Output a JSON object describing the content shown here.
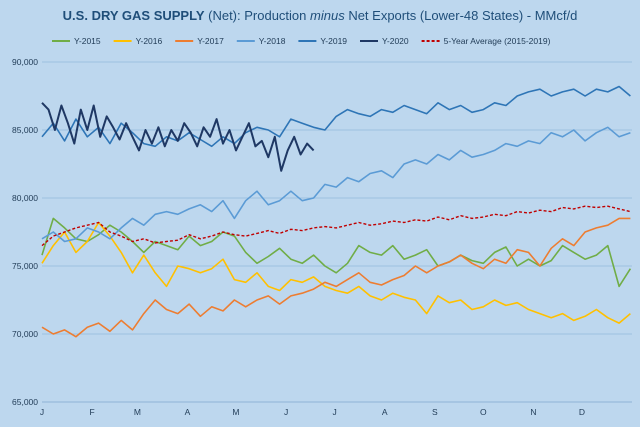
{
  "chart_data": {
    "type": "line",
    "title_bold": "U.S. DRY GAS SUPPLY",
    "title_rest_1": " (Net): Production ",
    "title_italic": "minus",
    "title_rest_2": " Net Exports (Lower-48 States) - MMcf/d",
    "xlabel": "",
    "ylabel": "",
    "ylim": [
      65000,
      90000
    ],
    "xlim": [
      1,
      366
    ],
    "yticks": [
      65000,
      70000,
      75000,
      80000,
      85000,
      90000
    ],
    "ytick_labels": [
      "65,000",
      "70,000",
      "75,000",
      "80,000",
      "85,000",
      "90,000"
    ],
    "month_labels": [
      "J",
      "F",
      "M",
      "A",
      "M",
      "J",
      "J",
      "A",
      "S",
      "O",
      "N",
      "D"
    ],
    "month_positions": [
      1,
      32,
      60,
      91,
      121,
      152,
      182,
      213,
      244,
      274,
      305,
      335
    ],
    "grid": "horizontal",
    "legend_position": "top",
    "series": [
      {
        "name": "Y-2015",
        "color": "#70ad47",
        "dash": "",
        "width": 1.6,
        "x": [
          1,
          8,
          15,
          22,
          29,
          36,
          43,
          50,
          57,
          64,
          71,
          78,
          85,
          92,
          99,
          106,
          113,
          120,
          127,
          134,
          141,
          148,
          155,
          162,
          169,
          176,
          183,
          190,
          197,
          204,
          211,
          218,
          225,
          232,
          239,
          246,
          253,
          260,
          267,
          274,
          281,
          288,
          295,
          302,
          309,
          316,
          323,
          330,
          337,
          344,
          351,
          358,
          365
        ],
        "values": [
          75800,
          78500,
          77800,
          77000,
          76800,
          77300,
          78000,
          77500,
          76800,
          76000,
          76800,
          76500,
          76200,
          77200,
          76500,
          76800,
          77500,
          77200,
          76000,
          75200,
          75700,
          76300,
          75500,
          75200,
          75800,
          75000,
          74500,
          75200,
          76500,
          76000,
          75800,
          76500,
          75500,
          75800,
          76200,
          75000,
          75300,
          75800,
          75400,
          75200,
          76000,
          76400,
          75000,
          75500,
          75000,
          75400,
          76500,
          76000,
          75500,
          75800,
          76500,
          73500,
          74800
        ]
      },
      {
        "name": "Y-2016",
        "color": "#ffc000",
        "dash": "",
        "width": 1.6,
        "x": [
          1,
          8,
          15,
          22,
          29,
          36,
          43,
          50,
          57,
          64,
          71,
          78,
          85,
          92,
          99,
          106,
          113,
          120,
          127,
          134,
          141,
          148,
          155,
          162,
          169,
          176,
          183,
          190,
          197,
          204,
          211,
          218,
          225,
          232,
          239,
          246,
          253,
          260,
          267,
          274,
          281,
          288,
          295,
          302,
          309,
          316,
          323,
          330,
          337,
          344,
          351,
          358,
          365
        ],
        "values": [
          75200,
          76500,
          77500,
          76000,
          76800,
          78200,
          77200,
          76000,
          74500,
          75800,
          74500,
          73500,
          75000,
          74800,
          74500,
          74800,
          75500,
          74000,
          73800,
          74500,
          73500,
          73200,
          74000,
          73800,
          74200,
          73500,
          73200,
          73000,
          73500,
          72800,
          72500,
          73000,
          72700,
          72500,
          71500,
          72800,
          72300,
          72500,
          71800,
          72000,
          72500,
          72100,
          72300,
          71800,
          71500,
          71200,
          71500,
          71000,
          71300,
          71800,
          71200,
          70800,
          71500
        ]
      },
      {
        "name": "Y-2017",
        "color": "#ed7d31",
        "dash": "",
        "width": 1.6,
        "x": [
          1,
          8,
          15,
          22,
          29,
          36,
          43,
          50,
          57,
          64,
          71,
          78,
          85,
          92,
          99,
          106,
          113,
          120,
          127,
          134,
          141,
          148,
          155,
          162,
          169,
          176,
          183,
          190,
          197,
          204,
          211,
          218,
          225,
          232,
          239,
          246,
          253,
          260,
          267,
          274,
          281,
          288,
          295,
          302,
          309,
          316,
          323,
          330,
          337,
          344,
          351,
          358,
          365
        ],
        "values": [
          70500,
          70000,
          70300,
          69800,
          70500,
          70800,
          70200,
          71000,
          70300,
          71500,
          72500,
          71800,
          71500,
          72200,
          71300,
          72000,
          71700,
          72500,
          72000,
          72500,
          72800,
          72200,
          72800,
          73000,
          73300,
          73800,
          73500,
          74000,
          74500,
          73800,
          73600,
          74000,
          74300,
          75000,
          74500,
          75000,
          75300,
          75800,
          75200,
          74800,
          75500,
          75200,
          76200,
          76000,
          75000,
          76300,
          77000,
          76500,
          77500,
          77800,
          78000,
          78500,
          78500
        ]
      },
      {
        "name": "Y-2018",
        "color": "#5b9bd5",
        "dash": "",
        "width": 1.6,
        "x": [
          1,
          8,
          15,
          22,
          29,
          36,
          43,
          50,
          57,
          64,
          71,
          78,
          85,
          92,
          99,
          106,
          113,
          120,
          127,
          134,
          141,
          148,
          155,
          162,
          169,
          176,
          183,
          190,
          197,
          204,
          211,
          218,
          225,
          232,
          239,
          246,
          253,
          260,
          267,
          274,
          281,
          288,
          295,
          302,
          309,
          316,
          323,
          330,
          337,
          344,
          351,
          358,
          365
        ],
        "values": [
          77000,
          77500,
          76800,
          77000,
          77800,
          77500,
          77000,
          77800,
          78500,
          78000,
          78800,
          79000,
          78800,
          79200,
          79500,
          79000,
          79800,
          78500,
          79800,
          80500,
          79500,
          79800,
          80500,
          79800,
          80000,
          81000,
          80800,
          81500,
          81200,
          81800,
          82000,
          81500,
          82500,
          82800,
          82500,
          83200,
          82800,
          83500,
          83000,
          83200,
          83500,
          84000,
          83800,
          84200,
          84000,
          84800,
          84500,
          85000,
          84200,
          84800,
          85200,
          84500,
          84800
        ]
      },
      {
        "name": "Y-2019",
        "color": "#2e75b6",
        "dash": "",
        "width": 1.6,
        "x": [
          1,
          8,
          15,
          22,
          29,
          36,
          43,
          50,
          57,
          64,
          71,
          78,
          85,
          92,
          99,
          106,
          113,
          120,
          127,
          134,
          141,
          148,
          155,
          162,
          169,
          176,
          183,
          190,
          197,
          204,
          211,
          218,
          225,
          232,
          239,
          246,
          253,
          260,
          267,
          274,
          281,
          288,
          295,
          302,
          309,
          316,
          323,
          330,
          337,
          344,
          351,
          358,
          365
        ],
        "values": [
          84500,
          85500,
          84200,
          85800,
          84500,
          85200,
          84000,
          85500,
          84800,
          84000,
          83800,
          84500,
          84200,
          84800,
          84300,
          83800,
          84500,
          84000,
          84800,
          85200,
          85000,
          84500,
          85800,
          85500,
          85200,
          85000,
          86000,
          86500,
          86200,
          86000,
          86500,
          86300,
          86800,
          86500,
          86200,
          87000,
          86500,
          86800,
          86300,
          86500,
          87000,
          86800,
          87500,
          87800,
          88000,
          87500,
          87800,
          88000,
          87500,
          88000,
          87800,
          88200,
          87500
        ]
      },
      {
        "name": "Y-2020",
        "color": "#1f3864",
        "dash": "",
        "width": 2.0,
        "x": [
          1,
          5,
          9,
          13,
          17,
          21,
          25,
          29,
          33,
          37,
          41,
          45,
          49,
          53,
          57,
          61,
          65,
          69,
          73,
          77,
          81,
          85,
          89,
          93,
          97,
          101,
          105,
          109,
          113,
          117,
          121,
          125,
          129,
          133,
          137,
          141,
          145,
          149,
          153,
          157,
          161,
          165,
          169
        ],
        "values": [
          87000,
          86500,
          85000,
          86800,
          85500,
          84000,
          86500,
          85000,
          86800,
          84500,
          86000,
          85200,
          84300,
          85500,
          84500,
          83500,
          85000,
          84000,
          85200,
          83800,
          85000,
          84200,
          85500,
          84800,
          83800,
          85200,
          84500,
          85800,
          84000,
          85000,
          83500,
          84500,
          85500,
          83800,
          84200,
          83000,
          84500,
          82000,
          83500,
          84500,
          83200,
          84000,
          83500
        ]
      },
      {
        "name": "5-Year Average (2015-2019)",
        "color": "#c00000",
        "dash": "3,2",
        "width": 1.4,
        "x": [
          1,
          8,
          15,
          22,
          29,
          36,
          43,
          50,
          57,
          64,
          71,
          78,
          85,
          92,
          99,
          106,
          113,
          120,
          127,
          134,
          141,
          148,
          155,
          162,
          169,
          176,
          183,
          190,
          197,
          204,
          211,
          218,
          225,
          232,
          239,
          246,
          253,
          260,
          267,
          274,
          281,
          288,
          295,
          302,
          309,
          316,
          323,
          330,
          337,
          344,
          351,
          358,
          365
        ],
        "values": [
          76500,
          77200,
          77500,
          77800,
          78000,
          78200,
          77500,
          77200,
          76800,
          77000,
          76700,
          76800,
          76900,
          77300,
          77000,
          77200,
          77500,
          77300,
          77200,
          77400,
          77600,
          77400,
          77700,
          77600,
          77800,
          77900,
          77800,
          78000,
          78200,
          78000,
          78100,
          78300,
          78200,
          78400,
          78300,
          78600,
          78400,
          78700,
          78500,
          78600,
          78800,
          78700,
          79000,
          78900,
          79100,
          79000,
          79300,
          79200,
          79400,
          79300,
          79400,
          79200,
          79000
        ]
      }
    ]
  }
}
